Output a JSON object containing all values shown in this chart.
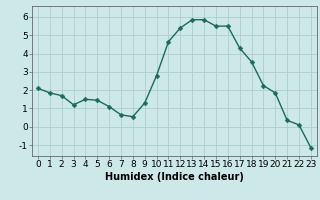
{
  "x": [
    0,
    1,
    2,
    3,
    4,
    5,
    6,
    7,
    8,
    9,
    10,
    11,
    12,
    13,
    14,
    15,
    16,
    17,
    18,
    19,
    20,
    21,
    22,
    23
  ],
  "y": [
    2.1,
    1.85,
    1.7,
    1.2,
    1.5,
    1.45,
    1.1,
    0.65,
    0.55,
    1.3,
    2.8,
    4.65,
    5.4,
    5.85,
    5.85,
    5.5,
    5.5,
    4.3,
    3.55,
    2.25,
    1.85,
    0.35,
    0.1,
    -1.15
  ],
  "line_color": "#1a6b5a",
  "marker": "D",
  "markersize": 2.5,
  "linewidth": 1.0,
  "bg_color": "#cce8e8",
  "grid_color": "#b0cccc",
  "axis_bg": "#cce8e8",
  "xlabel": "Humidex (Indice chaleur)",
  "xlabel_fontsize": 7,
  "ylabel_ticks": [
    -1,
    0,
    1,
    2,
    3,
    4,
    5,
    6
  ],
  "xlim": [
    -0.5,
    23.5
  ],
  "ylim": [
    -1.6,
    6.6
  ],
  "xtick_labels": [
    "0",
    "1",
    "2",
    "3",
    "4",
    "5",
    "6",
    "7",
    "8",
    "9",
    "10",
    "11",
    "12",
    "13",
    "14",
    "15",
    "16",
    "17",
    "18",
    "19",
    "20",
    "21",
    "22",
    "23"
  ],
  "tick_fontsize": 6.5
}
